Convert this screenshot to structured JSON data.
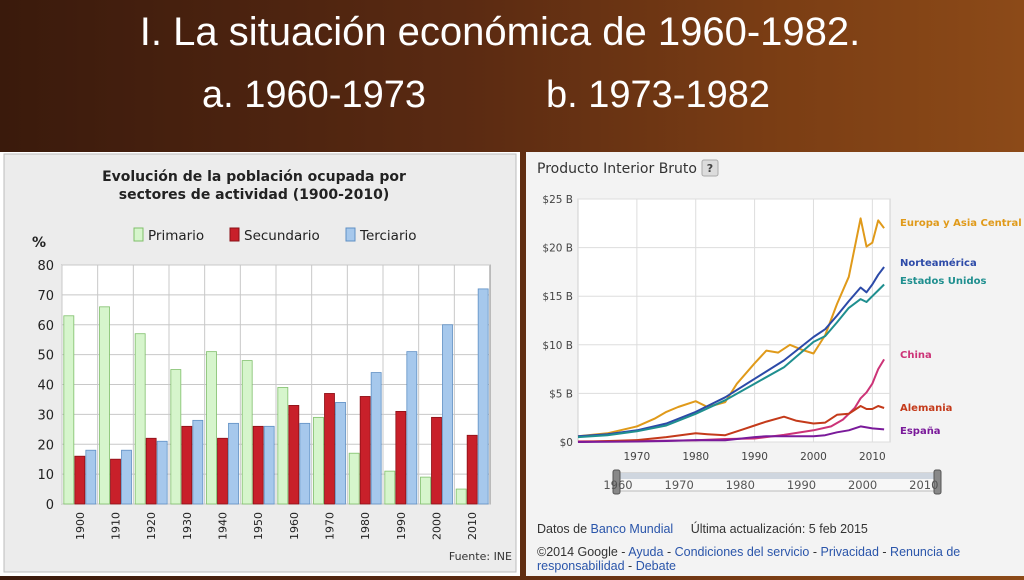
{
  "slide": {
    "title_line1": "I. La situación económica de 1960-1982.",
    "subtitle_a": "a. 1960-1973",
    "subtitle_b": "b. 1973-1982"
  },
  "chart_data": [
    {
      "type": "bar",
      "title": "Evolución de la población ocupada por sectores de actividad (1900-2010)",
      "title_line1": "Evolución de la población ocupada por",
      "title_line2": "sectores de actividad (1900-2010)",
      "ylabel": "%",
      "ylim": [
        0,
        80
      ],
      "yticks": [
        0,
        10,
        20,
        30,
        40,
        50,
        60,
        70,
        80
      ],
      "grid": true,
      "legend_position": "top",
      "source": "Fuente: INE",
      "categories": [
        "1900",
        "1910",
        "1920",
        "1930",
        "1940",
        "1950",
        "1960",
        "1970",
        "1980",
        "1990",
        "2000",
        "2010"
      ],
      "series": [
        {
          "name": "Primario",
          "color": "#d6f5cc",
          "stroke": "#7fbf6a",
          "values": [
            63,
            66,
            57,
            45,
            51,
            48,
            39,
            29,
            17,
            11,
            9,
            5
          ]
        },
        {
          "name": "Secundario",
          "color": "#c8202a",
          "stroke": "#8a1016",
          "values": [
            16,
            15,
            22,
            26,
            22,
            26,
            33,
            37,
            36,
            31,
            29,
            23
          ]
        },
        {
          "name": "Terciario",
          "color": "#a6c8ec",
          "stroke": "#5f8fc4",
          "values": [
            18,
            18,
            21,
            28,
            27,
            26,
            27,
            34,
            44,
            51,
            60,
            72
          ]
        }
      ]
    },
    {
      "type": "line",
      "title": "Producto Interior Bruto",
      "help_icon": "?",
      "ylim": [
        0,
        25
      ],
      "ytick_labels": [
        "$0",
        "$5 B",
        "$10 B",
        "$15 B",
        "$20 B",
        "$25 B"
      ],
      "ytick_values": [
        0,
        5,
        10,
        15,
        20,
        25
      ],
      "xlim": [
        1960,
        2013
      ],
      "xtick_labels": [
        "1970",
        "1980",
        "1990",
        "2000",
        "2010"
      ],
      "xtick_values": [
        1970,
        1980,
        1990,
        2000,
        2010
      ],
      "slider_labels": [
        "1960",
        "1970",
        "1980",
        "1990",
        "2000",
        "2010"
      ],
      "slider_values": [
        1960,
        1970,
        1980,
        1990,
        2000,
        2010
      ],
      "grid": true,
      "legend_position": "right",
      "series": [
        {
          "name": "Europa y Asia Central",
          "color": "#e09a1a",
          "x": [
            1960,
            1965,
            1970,
            1973,
            1975,
            1977,
            1980,
            1982,
            1985,
            1987,
            1990,
            1992,
            1994,
            1996,
            1998,
            2000,
            2002,
            2004,
            2006,
            2008,
            2009,
            2010,
            2011,
            2012
          ],
          "y": [
            0.6,
            0.9,
            1.6,
            2.4,
            3.1,
            3.6,
            4.2,
            3.6,
            4.1,
            6.0,
            8.1,
            9.4,
            9.2,
            10.0,
            9.5,
            9.1,
            11.0,
            14.2,
            17.0,
            23.0,
            20.1,
            20.5,
            22.8,
            22.0
          ]
        },
        {
          "name": "Norteamérica",
          "color": "#2c4aa8",
          "x": [
            1960,
            1965,
            1970,
            1975,
            1980,
            1985,
            1990,
            1995,
            2000,
            2002,
            2004,
            2006,
            2008,
            2009,
            2010,
            2011,
            2012
          ],
          "y": [
            0.6,
            0.8,
            1.2,
            1.9,
            3.1,
            4.6,
            6.5,
            8.4,
            10.8,
            11.6,
            13.0,
            14.5,
            15.9,
            15.4,
            16.2,
            17.2,
            18.0
          ]
        },
        {
          "name": "Estados Unidos",
          "color": "#1f8f8f",
          "x": [
            1960,
            1965,
            1970,
            1975,
            1980,
            1985,
            1990,
            1995,
            2000,
            2002,
            2004,
            2006,
            2008,
            2009,
            2010,
            2011,
            2012
          ],
          "y": [
            0.5,
            0.7,
            1.1,
            1.7,
            2.9,
            4.3,
            6.0,
            7.7,
            10.3,
            10.9,
            12.3,
            13.8,
            14.7,
            14.4,
            15.0,
            15.6,
            16.2
          ]
        },
        {
          "name": "China",
          "color": "#cc3377",
          "x": [
            1960,
            1970,
            1980,
            1985,
            1990,
            1995,
            2000,
            2003,
            2005,
            2007,
            2008,
            2009,
            2010,
            2011,
            2012
          ],
          "y": [
            0.06,
            0.09,
            0.19,
            0.31,
            0.36,
            0.73,
            1.2,
            1.6,
            2.3,
            3.5,
            4.5,
            5.1,
            6.0,
            7.5,
            8.5
          ]
        },
        {
          "name": "Alemania",
          "color": "#c43a1a",
          "x": [
            1960,
            1970,
            1975,
            1980,
            1982,
            1985,
            1988,
            1990,
            1992,
            1995,
            1997,
            2000,
            2002,
            2004,
            2006,
            2008,
            2009,
            2010,
            2011,
            2012
          ],
          "y": [
            0.0,
            0.2,
            0.5,
            0.9,
            0.8,
            0.7,
            1.3,
            1.7,
            2.1,
            2.6,
            2.2,
            1.9,
            2.0,
            2.8,
            2.9,
            3.7,
            3.4,
            3.4,
            3.7,
            3.5
          ]
        },
        {
          "name": "España",
          "color": "#7a1a9a",
          "x": [
            1960,
            1970,
            1975,
            1980,
            1985,
            1990,
            1992,
            1995,
            2000,
            2002,
            2004,
            2006,
            2008,
            2009,
            2010,
            2012
          ],
          "y": [
            0.0,
            0.05,
            0.1,
            0.2,
            0.18,
            0.5,
            0.6,
            0.6,
            0.6,
            0.7,
            1.0,
            1.2,
            1.6,
            1.5,
            1.4,
            1.3
          ]
        }
      ],
      "footer": {
        "data_prefix": "Datos de",
        "data_source": "Banco Mundial",
        "updated": "Última actualización: 5 feb 2015",
        "copyright": "©2014 Google -",
        "link_help": "Ayuda",
        "sep1": "-",
        "link_terms": "Condiciones del servicio",
        "sep2": "-",
        "link_privacy": "Privacidad",
        "sep3": "-",
        "link_feedback_1": "Renuncia de",
        "link_feedback_2": "responsabilidad",
        "sep4": "-",
        "link_debate": "Debate"
      }
    }
  ]
}
